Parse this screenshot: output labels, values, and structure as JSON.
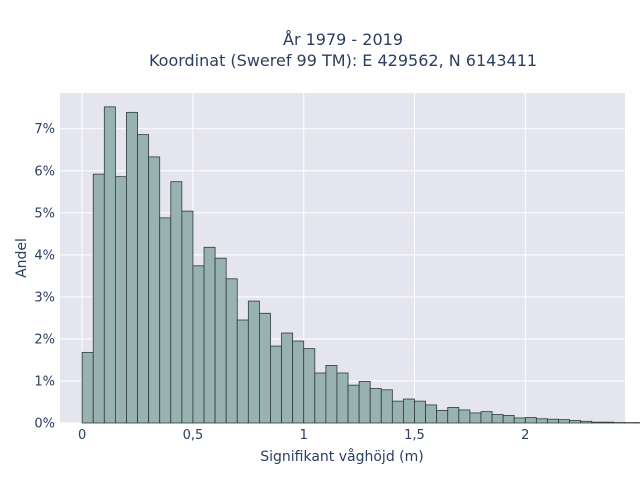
{
  "chart_data": {
    "type": "bar",
    "title": "År 1979 - 2019",
    "subtitle": "Koordinat (Sweref 99 TM): E 429562, N 6143411",
    "xlabel": "Signifikant våghöjd (m)",
    "ylabel": "Andel",
    "xlim": [
      -0.1,
      2.45
    ],
    "ylim": [
      0,
      7.85
    ],
    "x_ticks": [
      0,
      0.5,
      1,
      1.5,
      2
    ],
    "x_tick_labels": [
      "0",
      "0,5",
      "1",
      "1,5",
      "2"
    ],
    "y_ticks": [
      0,
      1,
      2,
      3,
      4,
      5,
      6,
      7
    ],
    "y_tick_labels": [
      "0%",
      "1%",
      "2%",
      "3%",
      "4%",
      "5%",
      "6%",
      "7%"
    ],
    "bin_start": 0,
    "bin_width": 0.05,
    "values": [
      1.68,
      5.92,
      7.52,
      5.86,
      7.39,
      6.86,
      6.33,
      4.88,
      5.74,
      5.04,
      3.74,
      4.18,
      3.92,
      3.43,
      2.45,
      2.9,
      2.61,
      1.83,
      2.14,
      1.95,
      1.77,
      1.19,
      1.37,
      1.19,
      0.9,
      0.99,
      0.82,
      0.79,
      0.52,
      0.57,
      0.52,
      0.43,
      0.3,
      0.37,
      0.31,
      0.24,
      0.27,
      0.2,
      0.18,
      0.12,
      0.13,
      0.1,
      0.09,
      0.08,
      0.06,
      0.04,
      0.02,
      0.02,
      0.01,
      0.01,
      0.01,
      0.01
    ],
    "grid": true,
    "legend": "none",
    "colors": {
      "bar_fill": "#98b2b0",
      "bar_edge": "#2f3a3a",
      "plot_bg": "#e5e5ef",
      "grid": "#ffffff",
      "text": "#2a3f5f"
    }
  }
}
